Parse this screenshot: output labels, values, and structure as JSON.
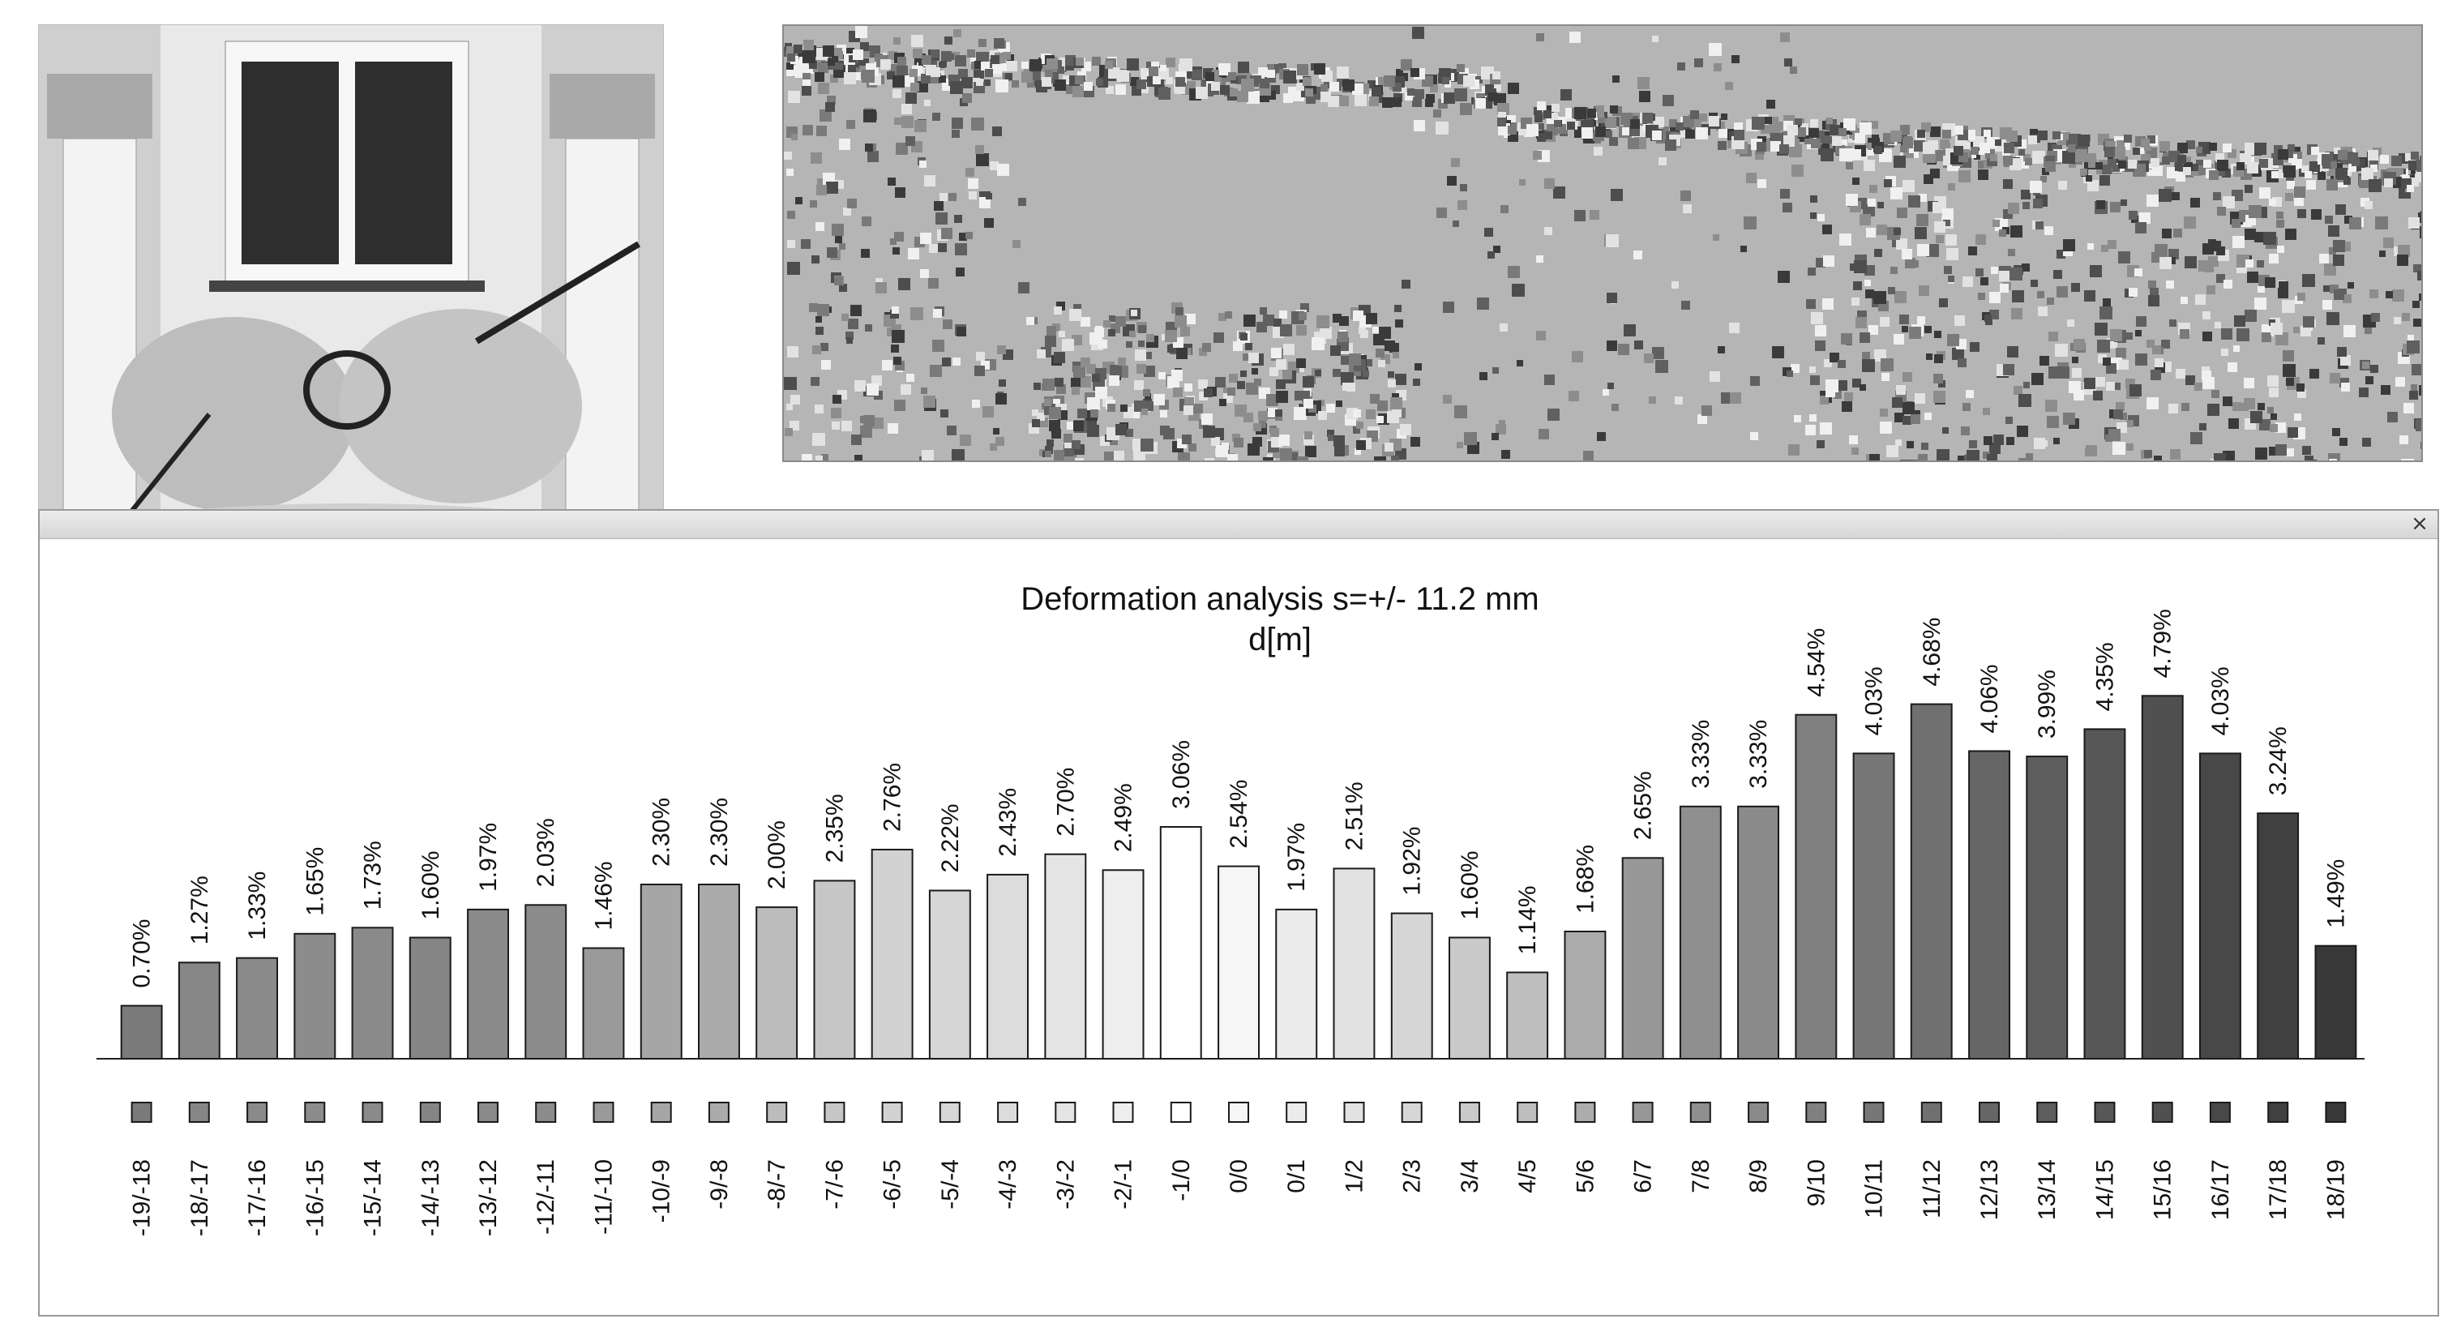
{
  "window": {
    "close_icon": "close-icon"
  },
  "chart_data": {
    "type": "bar",
    "title": "Deformation analysis s=+/- 11.2 mm",
    "subtitle": "d[m]",
    "xlabel": "",
    "ylabel": "",
    "ylim": [
      0,
      5.2
    ],
    "grid": false,
    "legend": "none",
    "label_suffix": "%",
    "categories": [
      "-19/-18",
      "-18/-17",
      "-17/-16",
      "-16/-15",
      "-15/-14",
      "-14/-13",
      "-13/-12",
      "-12/-11",
      "-11/-10",
      "-10/-9",
      "-9/-8",
      "-8/-7",
      "-7/-6",
      "-6/-5",
      "-5/-4",
      "-4/-3",
      "-3/-2",
      "-2/-1",
      "-1/0",
      "0/0",
      "0/1",
      "1/2",
      "2/3",
      "3/4",
      "4/5",
      "5/6",
      "6/7",
      "7/8",
      "8/9",
      "9/10",
      "10/11",
      "11/12",
      "12/13",
      "13/14",
      "14/15",
      "15/16",
      "16/17",
      "17/18",
      "18/19"
    ],
    "values": [
      0.7,
      1.27,
      1.33,
      1.65,
      1.73,
      1.6,
      1.97,
      2.03,
      1.46,
      2.3,
      2.3,
      2.0,
      2.35,
      2.76,
      2.22,
      2.43,
      2.7,
      2.49,
      3.06,
      2.54,
      1.97,
      2.51,
      1.92,
      1.6,
      1.14,
      1.68,
      2.65,
      3.33,
      3.33,
      4.54,
      4.03,
      4.68,
      4.06,
      3.99,
      4.35,
      4.79,
      4.03,
      3.24,
      1.49
    ],
    "labels": [
      "0.70%",
      "1.27%",
      "1.33%",
      "1.65%",
      "1.73%",
      "1.60%",
      "1.97%",
      "2.03%",
      "1.46%",
      "2.30%",
      "2.30%",
      "2.00%",
      "2.35%",
      "2.76%",
      "2.22%",
      "2.43%",
      "2.70%",
      "2.49%",
      "3.06%",
      "2.54%",
      "1.97%",
      "2.51%",
      "1.92%",
      "1.60%",
      "1.14%",
      "1.68%",
      "2.65%",
      "3.33%",
      "3.33%",
      "4.54%",
      "4.03%",
      "4.68%",
      "4.06%",
      "3.99%",
      "4.35%",
      "4.79%",
      "4.03%",
      "3.24%",
      "1.49%"
    ],
    "colors": [
      "#7a7a7a",
      "#868686",
      "#8a8a8a",
      "#8c8c8c",
      "#8a8a8a",
      "#858585",
      "#8a8a8a",
      "#8c8c8c",
      "#9a9a9a",
      "#a6a6a6",
      "#ababab",
      "#bcbcbc",
      "#c6c6c6",
      "#d2d2d2",
      "#d6d6d6",
      "#dcdcdc",
      "#e4e4e4",
      "#eeeeee",
      "#ffffff",
      "#f6f6f6",
      "#ebebeb",
      "#e2e2e2",
      "#d6d6d6",
      "#c9c9c9",
      "#bebebe",
      "#acacac",
      "#979797",
      "#8f8f8f",
      "#8a8a8a",
      "#808080",
      "#777777",
      "#707070",
      "#666666",
      "#5e5e5e",
      "#575757",
      "#505050",
      "#484848",
      "#404040",
      "#383838"
    ]
  }
}
